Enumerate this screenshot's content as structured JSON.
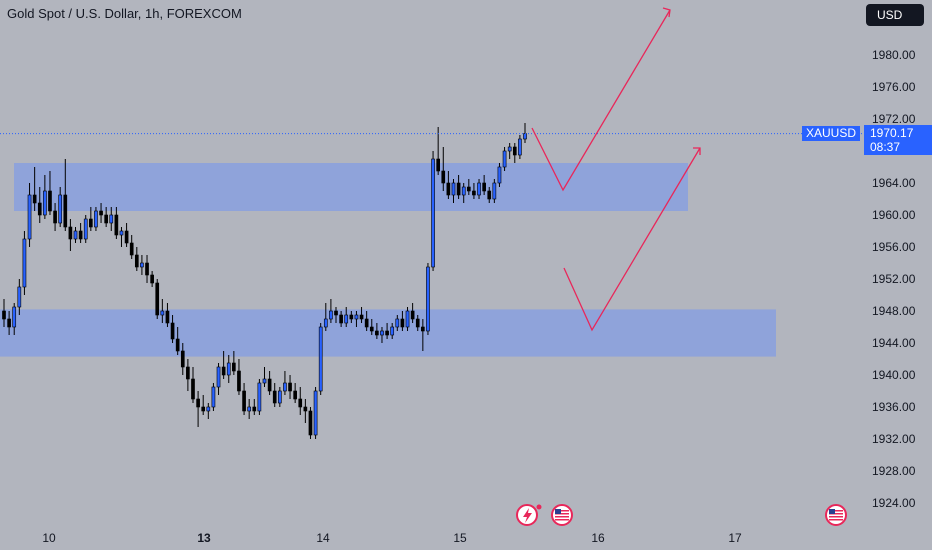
{
  "header": {
    "title": "Gold Spot / U.S. Dollar, 1h, FOREXCOM",
    "currency_button": "USD"
  },
  "price_scale": {
    "symbol_label": "XAUUSD",
    "last_price": "1970.17",
    "countdown": "08:37",
    "last_price_value": 1970.17
  },
  "colors": {
    "background": "#b2b5be",
    "zone": "#8fa3da",
    "up_candle": "#2962ff",
    "down_candle": "#000000",
    "projection": "#e8275a",
    "last_price": "#2962ff"
  },
  "chart_data": {
    "type": "candlestick",
    "title": "Gold Spot / U.S. Dollar, 1h, FOREXCOM",
    "ylim": [
      1920,
      1985
    ],
    "y_ticks": [
      "1980.00",
      "1976.00",
      "1972.00",
      "1968.00",
      "1964.00",
      "1960.00",
      "1956.00",
      "1952.00",
      "1948.00",
      "1944.00",
      "1940.00",
      "1936.00",
      "1932.00",
      "1928.00",
      "1924.00"
    ],
    "x_ticks": [
      {
        "label": "10",
        "x": 49,
        "bold": false
      },
      {
        "label": "13",
        "x": 204,
        "bold": true
      },
      {
        "label": "14",
        "x": 323,
        "bold": false
      },
      {
        "label": "15",
        "x": 460,
        "bold": false
      },
      {
        "label": "16",
        "x": 598,
        "bold": false
      },
      {
        "label": "17",
        "x": 735,
        "bold": false
      }
    ],
    "candles": [
      [
        1948.0,
        1949.5,
        1946.0,
        1947.0
      ],
      [
        1947.0,
        1948.0,
        1945.0,
        1946.0
      ],
      [
        1946.0,
        1949.0,
        1945.0,
        1948.5
      ],
      [
        1948.5,
        1952.0,
        1947.5,
        1951.0
      ],
      [
        1951.0,
        1958.0,
        1950.0,
        1957.0
      ],
      [
        1957.0,
        1964.0,
        1956.0,
        1962.5
      ],
      [
        1962.5,
        1966.0,
        1960.5,
        1961.5
      ],
      [
        1961.5,
        1963.5,
        1959.0,
        1960.0
      ],
      [
        1960.0,
        1965.0,
        1959.5,
        1963.0
      ],
      [
        1963.0,
        1965.5,
        1960.0,
        1960.5
      ],
      [
        1960.5,
        1961.5,
        1958.0,
        1959.0
      ],
      [
        1959.0,
        1963.5,
        1958.5,
        1962.5
      ],
      [
        1962.5,
        1967.0,
        1958.0,
        1958.5
      ],
      [
        1958.5,
        1959.5,
        1955.5,
        1957.0
      ],
      [
        1957.0,
        1958.5,
        1956.5,
        1958.0
      ],
      [
        1958.0,
        1959.0,
        1956.5,
        1957.0
      ],
      [
        1957.0,
        1960.0,
        1956.5,
        1959.5
      ],
      [
        1959.5,
        1961.0,
        1958.0,
        1958.5
      ],
      [
        1958.5,
        1961.0,
        1958.0,
        1960.5
      ],
      [
        1960.5,
        1961.5,
        1959.0,
        1960.0
      ],
      [
        1960.0,
        1961.0,
        1958.5,
        1959.0
      ],
      [
        1959.0,
        1961.0,
        1958.0,
        1960.0
      ],
      [
        1960.0,
        1961.0,
        1957.0,
        1957.5
      ],
      [
        1957.5,
        1958.5,
        1956.0,
        1958.0
      ],
      [
        1958.0,
        1959.0,
        1956.0,
        1956.5
      ],
      [
        1956.5,
        1957.5,
        1954.5,
        1955.0
      ],
      [
        1955.0,
        1956.0,
        1953.0,
        1953.5
      ],
      [
        1953.5,
        1955.0,
        1952.5,
        1954.0
      ],
      [
        1954.0,
        1955.0,
        1951.5,
        1952.5
      ],
      [
        1952.5,
        1953.0,
        1951.0,
        1951.5
      ],
      [
        1951.5,
        1952.0,
        1947.0,
        1947.5
      ],
      [
        1947.5,
        1949.5,
        1946.5,
        1948.0
      ],
      [
        1948.0,
        1949.0,
        1946.0,
        1946.5
      ],
      [
        1946.5,
        1947.5,
        1944.0,
        1944.5
      ],
      [
        1944.5,
        1946.0,
        1942.5,
        1943.0
      ],
      [
        1943.0,
        1944.0,
        1940.0,
        1941.0
      ],
      [
        1941.0,
        1942.0,
        1938.0,
        1939.5
      ],
      [
        1939.5,
        1941.0,
        1936.5,
        1937.0
      ],
      [
        1937.0,
        1938.0,
        1933.5,
        1936.0
      ],
      [
        1936.0,
        1937.5,
        1935.0,
        1935.5
      ],
      [
        1935.5,
        1936.5,
        1934.5,
        1936.0
      ],
      [
        1936.0,
        1939.0,
        1935.5,
        1938.5
      ],
      [
        1938.5,
        1941.5,
        1937.5,
        1941.0
      ],
      [
        1941.0,
        1943.0,
        1939.5,
        1940.0
      ],
      [
        1940.0,
        1942.5,
        1939.0,
        1941.5
      ],
      [
        1941.5,
        1943.0,
        1940.0,
        1940.5
      ],
      [
        1940.5,
        1942.0,
        1937.5,
        1938.0
      ],
      [
        1938.0,
        1939.0,
        1935.0,
        1935.5
      ],
      [
        1935.5,
        1937.0,
        1934.5,
        1936.0
      ],
      [
        1936.0,
        1937.0,
        1935.0,
        1935.5
      ],
      [
        1935.5,
        1939.5,
        1935.0,
        1939.0
      ],
      [
        1939.0,
        1941.0,
        1938.5,
        1939.5
      ],
      [
        1939.5,
        1940.5,
        1937.5,
        1938.0
      ],
      [
        1938.0,
        1939.0,
        1936.0,
        1936.5
      ],
      [
        1936.5,
        1938.5,
        1936.0,
        1938.0
      ],
      [
        1938.0,
        1940.5,
        1937.5,
        1939.0
      ],
      [
        1939.0,
        1940.0,
        1937.0,
        1938.0
      ],
      [
        1938.0,
        1939.0,
        1936.5,
        1937.0
      ],
      [
        1937.0,
        1938.5,
        1935.0,
        1936.0
      ],
      [
        1936.0,
        1937.0,
        1934.0,
        1935.5
      ],
      [
        1935.5,
        1936.0,
        1932.0,
        1932.5
      ],
      [
        1932.5,
        1938.5,
        1932.0,
        1938.0
      ],
      [
        1938.0,
        1946.5,
        1937.5,
        1946.0
      ],
      [
        1946.0,
        1949.0,
        1945.5,
        1947.0
      ],
      [
        1947.0,
        1949.5,
        1946.5,
        1948.0
      ],
      [
        1948.0,
        1948.5,
        1946.5,
        1947.5
      ],
      [
        1947.5,
        1948.0,
        1946.0,
        1946.5
      ],
      [
        1946.5,
        1948.5,
        1946.0,
        1947.5
      ],
      [
        1947.5,
        1948.0,
        1946.5,
        1947.0
      ],
      [
        1947.0,
        1948.0,
        1946.0,
        1947.5
      ],
      [
        1947.5,
        1948.5,
        1946.5,
        1947.0
      ],
      [
        1947.0,
        1948.0,
        1945.5,
        1946.0
      ],
      [
        1946.0,
        1947.0,
        1945.0,
        1945.5
      ],
      [
        1945.5,
        1946.5,
        1944.5,
        1945.0
      ],
      [
        1945.0,
        1946.0,
        1944.0,
        1945.5
      ],
      [
        1945.5,
        1946.5,
        1944.5,
        1945.0
      ],
      [
        1945.0,
        1946.5,
        1944.5,
        1946.0
      ],
      [
        1946.0,
        1947.5,
        1945.5,
        1947.0
      ],
      [
        1947.0,
        1948.0,
        1945.5,
        1946.0
      ],
      [
        1946.0,
        1948.5,
        1945.5,
        1948.0
      ],
      [
        1948.0,
        1949.0,
        1946.5,
        1947.0
      ],
      [
        1947.0,
        1947.5,
        1945.5,
        1946.0
      ],
      [
        1946.0,
        1947.0,
        1943.0,
        1945.5
      ],
      [
        1945.5,
        1954.0,
        1945.0,
        1953.5
      ],
      [
        1953.5,
        1968.0,
        1953.0,
        1967.0
      ],
      [
        1967.0,
        1971.0,
        1965.0,
        1965.5
      ],
      [
        1965.5,
        1968.5,
        1963.0,
        1964.0
      ],
      [
        1964.0,
        1965.5,
        1962.0,
        1962.5
      ],
      [
        1962.5,
        1964.5,
        1961.5,
        1964.0
      ],
      [
        1964.0,
        1965.0,
        1962.0,
        1962.5
      ],
      [
        1962.5,
        1964.0,
        1961.5,
        1963.5
      ],
      [
        1963.5,
        1964.5,
        1962.5,
        1963.0
      ],
      [
        1963.0,
        1964.0,
        1962.0,
        1962.5
      ],
      [
        1962.5,
        1964.5,
        1962.0,
        1964.0
      ],
      [
        1964.0,
        1965.0,
        1962.5,
        1963.0
      ],
      [
        1963.0,
        1963.5,
        1961.5,
        1962.0
      ],
      [
        1962.0,
        1964.5,
        1961.5,
        1964.0
      ],
      [
        1964.0,
        1966.5,
        1963.5,
        1966.0
      ],
      [
        1966.0,
        1968.5,
        1965.5,
        1968.0
      ],
      [
        1968.0,
        1969.0,
        1967.0,
        1968.5
      ],
      [
        1968.5,
        1969.0,
        1966.5,
        1967.5
      ],
      [
        1967.5,
        1970.0,
        1967.0,
        1969.5
      ],
      [
        1969.5,
        1971.5,
        1969.0,
        1970.17
      ]
    ]
  }
}
